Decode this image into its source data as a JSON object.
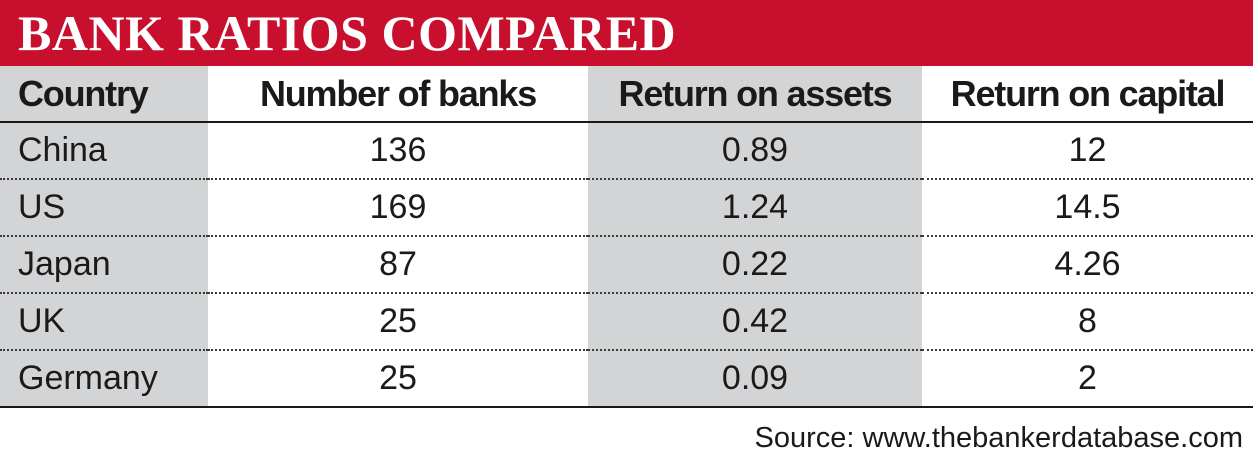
{
  "title": "BANK RATIOS COMPARED",
  "colors": {
    "title_bar": "#c8102e",
    "title_text": "#ffffff",
    "shaded_column": "#d3d4d6",
    "text": "#1a1a1a"
  },
  "chart_data": {
    "type": "table",
    "title": "BANK RATIOS COMPARED",
    "columns": [
      "Country",
      "Number of banks",
      "Return on assets",
      "Return on capital"
    ],
    "rows": [
      [
        "China",
        "136",
        "0.89",
        "12"
      ],
      [
        "US",
        "169",
        "1.24",
        "14.5"
      ],
      [
        "Japan",
        "87",
        "0.22",
        "4.26"
      ],
      [
        "UK",
        "25",
        "0.42",
        "8"
      ],
      [
        "Germany",
        "25",
        "0.09",
        "2"
      ]
    ],
    "shaded_columns": [
      0,
      2
    ]
  },
  "source": "Source: www.thebankerdatabase.com"
}
